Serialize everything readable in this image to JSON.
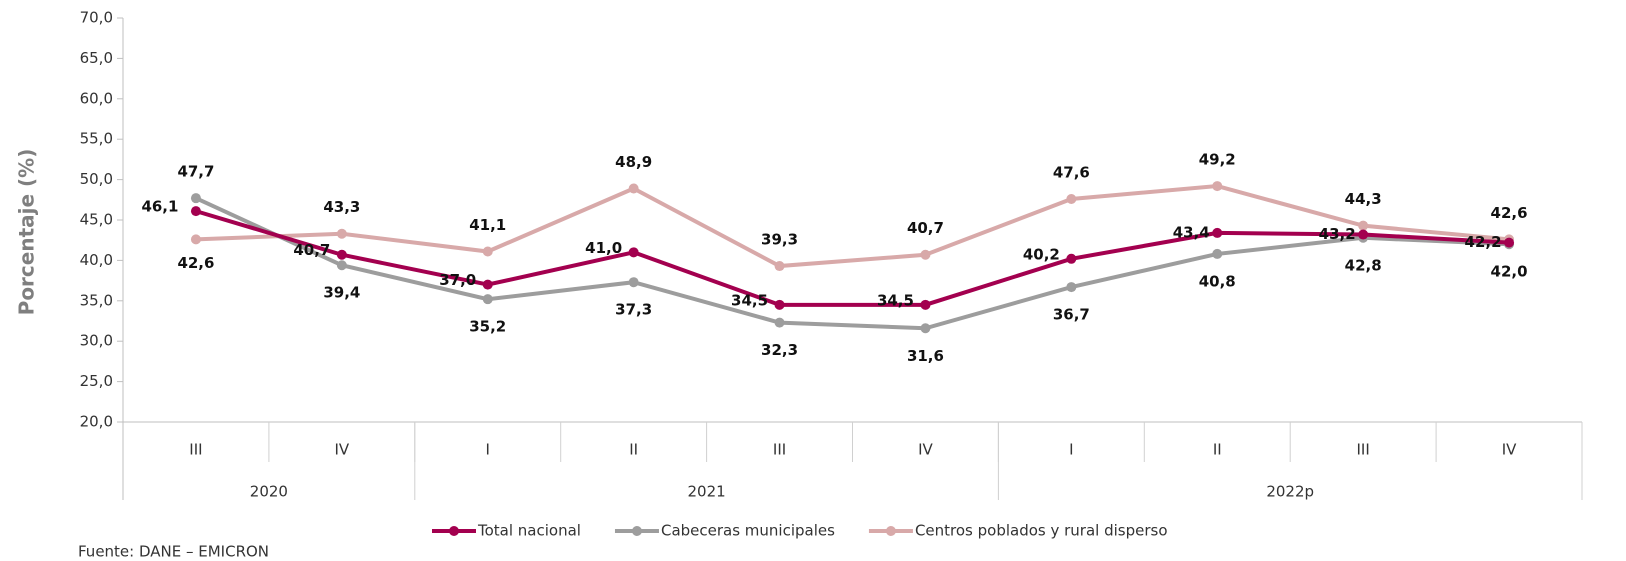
{
  "chart_data": {
    "type": "line",
    "y_label": "Porcentaje (%)",
    "source": "Fuente: DANE – EMICRON",
    "categories": [
      "III",
      "IV",
      "I",
      "II",
      "III",
      "IV",
      "I",
      "II",
      "III",
      "IV"
    ],
    "groups": [
      {
        "label": "2020",
        "span": 2
      },
      {
        "label": "2021",
        "span": 4
      },
      {
        "label": "2022p",
        "span": 4
      }
    ],
    "ylim": [
      20,
      70
    ],
    "yticks": [
      {
        "value": 20,
        "label": "20,0"
      },
      {
        "value": 25,
        "label": "25,0"
      },
      {
        "value": 30,
        "label": "30,0"
      },
      {
        "value": 35,
        "label": "35,0"
      },
      {
        "value": 40,
        "label": "40,0"
      },
      {
        "value": 45,
        "label": "45,0"
      },
      {
        "value": 50,
        "label": "50,0"
      },
      {
        "value": 55,
        "label": "55,0"
      },
      {
        "value": 60,
        "label": "60,0"
      },
      {
        "value": 65,
        "label": "65,0"
      },
      {
        "value": 70,
        "label": "70,0"
      }
    ],
    "legend": "bottom",
    "series": [
      {
        "name": "Total nacional",
        "color": "#a3004f",
        "values": [
          46.1,
          40.7,
          37.0,
          41.0,
          34.5,
          34.5,
          40.2,
          43.4,
          43.2,
          42.2
        ],
        "value_labels": [
          "46,1",
          "40,7",
          "37,0",
          "41,0",
          "34,5",
          "34,5",
          "40,2",
          "43,4",
          "43,2",
          "42,2"
        ]
      },
      {
        "name": "Cabeceras municipales",
        "color": "#9d9d9d",
        "values": [
          47.7,
          39.4,
          35.2,
          37.3,
          32.3,
          31.6,
          36.7,
          40.8,
          42.8,
          42.0
        ],
        "value_labels": [
          "47,7",
          "39,4",
          "35,2",
          "37,3",
          "32,3",
          "31,6",
          "36,7",
          "40,8",
          "42,8",
          "42,0"
        ]
      },
      {
        "name": "Centros poblados y rural disperso",
        "color": "#d8a9a9",
        "values": [
          42.6,
          43.3,
          41.1,
          48.9,
          39.3,
          40.7,
          47.6,
          49.2,
          44.3,
          42.6
        ],
        "value_labels": [
          "42,6",
          "43,3",
          "41,1",
          "48,9",
          "39,3",
          "40,7",
          "47,6",
          "49,2",
          "44,3",
          "42,6"
        ]
      }
    ]
  }
}
